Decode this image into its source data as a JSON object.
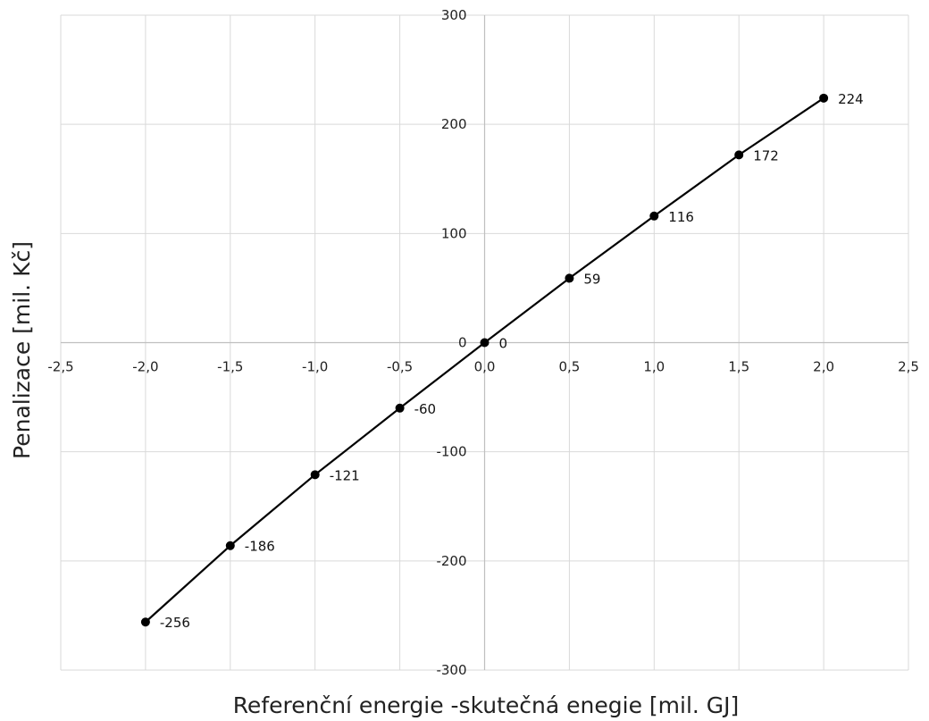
{
  "chart_data": {
    "type": "line",
    "title": "",
    "xlabel": "Referenční energie -skutečná enegie [mil. GJ]",
    "ylabel": "Penalizace [mil. Kč]",
    "xlim": [
      -2.5,
      2.5
    ],
    "ylim": [
      -300,
      300
    ],
    "x_ticks": [
      -2.5,
      -2.0,
      -1.5,
      -1.0,
      -0.5,
      0.0,
      0.5,
      1.0,
      1.5,
      2.0,
      2.5
    ],
    "x_tick_labels": [
      "-2,5",
      "-2,0",
      "-1,5",
      "-1,0",
      "-0,5",
      "0,0",
      "0,5",
      "1,0",
      "1,5",
      "2,0",
      "2,5"
    ],
    "y_ticks": [
      -300,
      -200,
      -100,
      0,
      100,
      200,
      300
    ],
    "y_tick_labels": [
      "-300",
      "-200",
      "-100",
      "0",
      "100",
      "200",
      "300"
    ],
    "grid": true,
    "series": [
      {
        "color": "#000000",
        "x": [
          -2.0,
          -1.5,
          -1.0,
          -0.5,
          0.0,
          0.5,
          1.0,
          1.5,
          2.0
        ],
        "y": [
          -256,
          -186,
          -121,
          -60,
          0,
          59,
          116,
          172,
          224
        ],
        "labels": [
          "-256",
          "-186",
          "-121",
          "-60",
          "0",
          "59",
          "116",
          "172",
          "224"
        ]
      }
    ]
  }
}
